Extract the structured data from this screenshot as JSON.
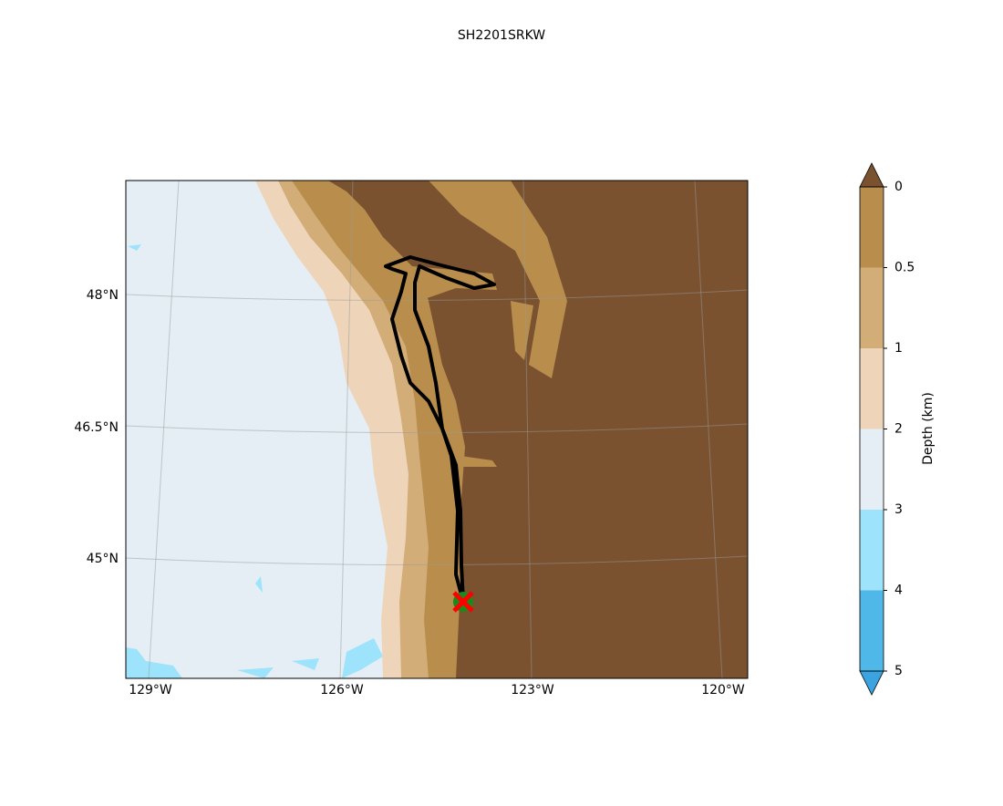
{
  "title": "SH2201SRKW",
  "map": {
    "lat_labels": [
      "48°N",
      "46.5°N",
      "45°N"
    ],
    "lon_labels": [
      "129°W",
      "126°W",
      "123°W",
      "120°W"
    ]
  },
  "colorbar": {
    "label": "Depth (km)",
    "ticks": [
      0,
      0.5,
      1,
      2,
      3,
      4,
      5
    ],
    "colors": [
      "#b98e4c",
      "#d3ad78",
      "#eed5ba",
      "#e4eef4",
      "#9de3fb",
      "#4fb8e8"
    ],
    "extend_top": "#7a5230",
    "extend_bottom": "#3aa3e0"
  }
}
